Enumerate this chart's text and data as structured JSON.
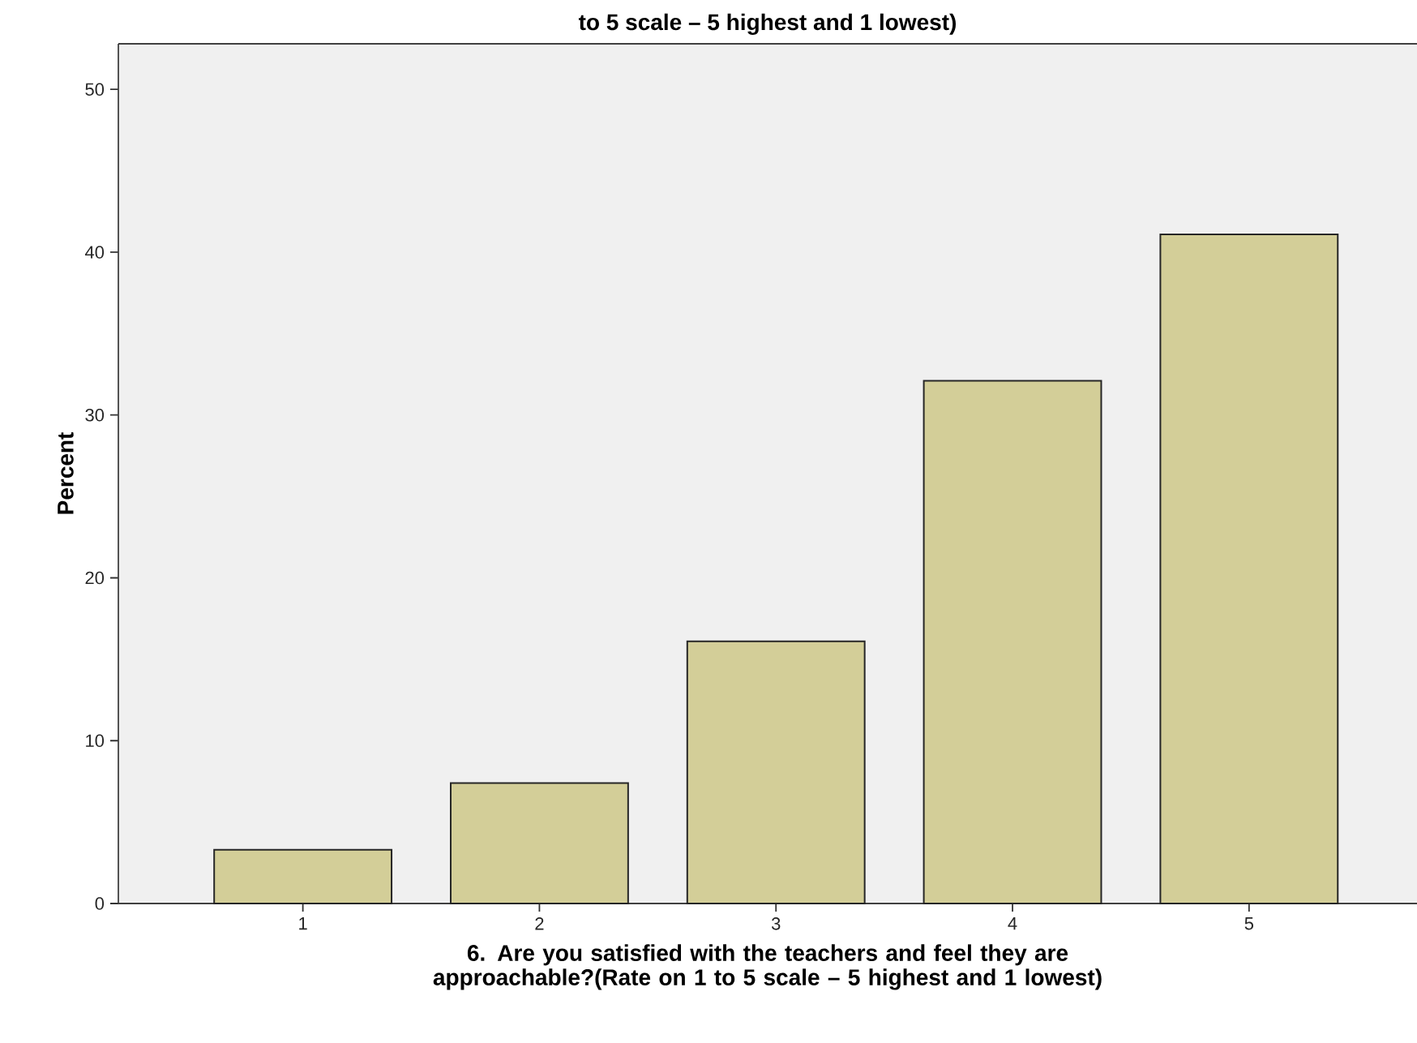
{
  "chart_data": {
    "type": "bar",
    "title": "to 5 scale – 5 highest and 1 lowest)",
    "xlabel": "6. Are you satisfied with the teachers and feel they are approachable?(Rate on 1 to 5 scale – 5 highest and 1 lowest)",
    "ylabel": "Percent",
    "categories": [
      "1",
      "2",
      "3",
      "4",
      "5"
    ],
    "values": [
      3.3,
      7.4,
      16.1,
      32.1,
      41.1
    ],
    "color": "#d3ce98",
    "ylim": [
      0,
      52.8
    ],
    "yticks": [
      0,
      10,
      20,
      30,
      40,
      50
    ],
    "grid": false
  }
}
